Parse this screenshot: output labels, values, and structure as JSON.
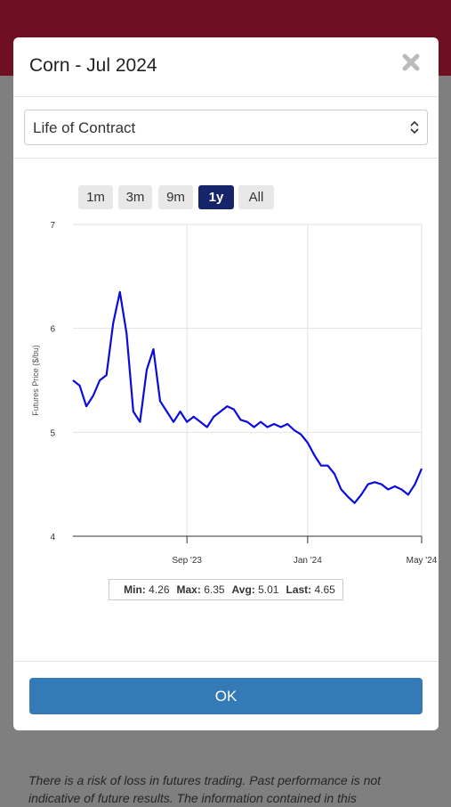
{
  "header": {
    "title": "Corn - Jul 2024"
  },
  "select": {
    "label": "Life of Contract"
  },
  "range_buttons": [
    {
      "label": "1m"
    },
    {
      "label": "3m"
    },
    {
      "label": "9m"
    },
    {
      "label": "1y",
      "active": true
    },
    {
      "label": "All"
    }
  ],
  "chart_data": {
    "type": "line",
    "y_axis_label": "Futures Price ($/bu)",
    "color": "#0b0bdc",
    "grid": true,
    "categories": [
      null,
      null,
      null,
      null,
      null,
      null,
      null,
      null,
      null,
      null,
      null,
      null,
      null,
      null,
      null,
      null,
      null,
      null,
      null,
      null,
      null,
      null,
      null,
      null,
      null,
      null,
      null,
      null,
      null,
      null,
      null,
      null,
      null,
      null,
      null,
      null,
      null,
      null,
      null,
      null,
      null,
      null,
      null,
      null,
      null,
      null,
      null,
      null,
      null,
      null,
      null,
      null,
      null
    ],
    "values": [
      5.5,
      5.45,
      5.25,
      5.35,
      5.5,
      5.55,
      6.05,
      6.35,
      5.95,
      5.2,
      5.1,
      5.6,
      5.8,
      5.3,
      5.2,
      5.1,
      5.2,
      5.1,
      5.15,
      5.1,
      5.05,
      5.15,
      5.2,
      5.25,
      5.22,
      5.12,
      5.1,
      5.05,
      5.1,
      5.05,
      5.08,
      5.05,
      5.08,
      5.02,
      4.98,
      4.9,
      4.78,
      4.68,
      4.68,
      4.6,
      4.45,
      4.38,
      4.32,
      4.4,
      4.5,
      4.52,
      4.5,
      4.45,
      4.48,
      4.45,
      4.4,
      4.5,
      4.65
    ],
    "ylim": [
      4,
      7
    ],
    "yticks": [
      4,
      5,
      6,
      7
    ],
    "xlim": [
      0,
      52
    ],
    "xticks": [
      {
        "value": 17,
        "label": "Sep '23"
      },
      {
        "value": 35,
        "label": "Jan '24"
      },
      {
        "value": 52,
        "label": "May '24"
      }
    ]
  },
  "stats": [
    {
      "label": "Min:",
      "value": 4.26
    },
    {
      "label": "Max:",
      "value": 6.35
    },
    {
      "label": "Avg:",
      "value": 5.01
    },
    {
      "label": "Last:",
      "value": 4.65
    }
  ],
  "footer": {
    "button": "OK"
  },
  "disclaimer": "There is a risk of loss in futures trading. Past performance is not indicative of future results. The information contained in this"
}
